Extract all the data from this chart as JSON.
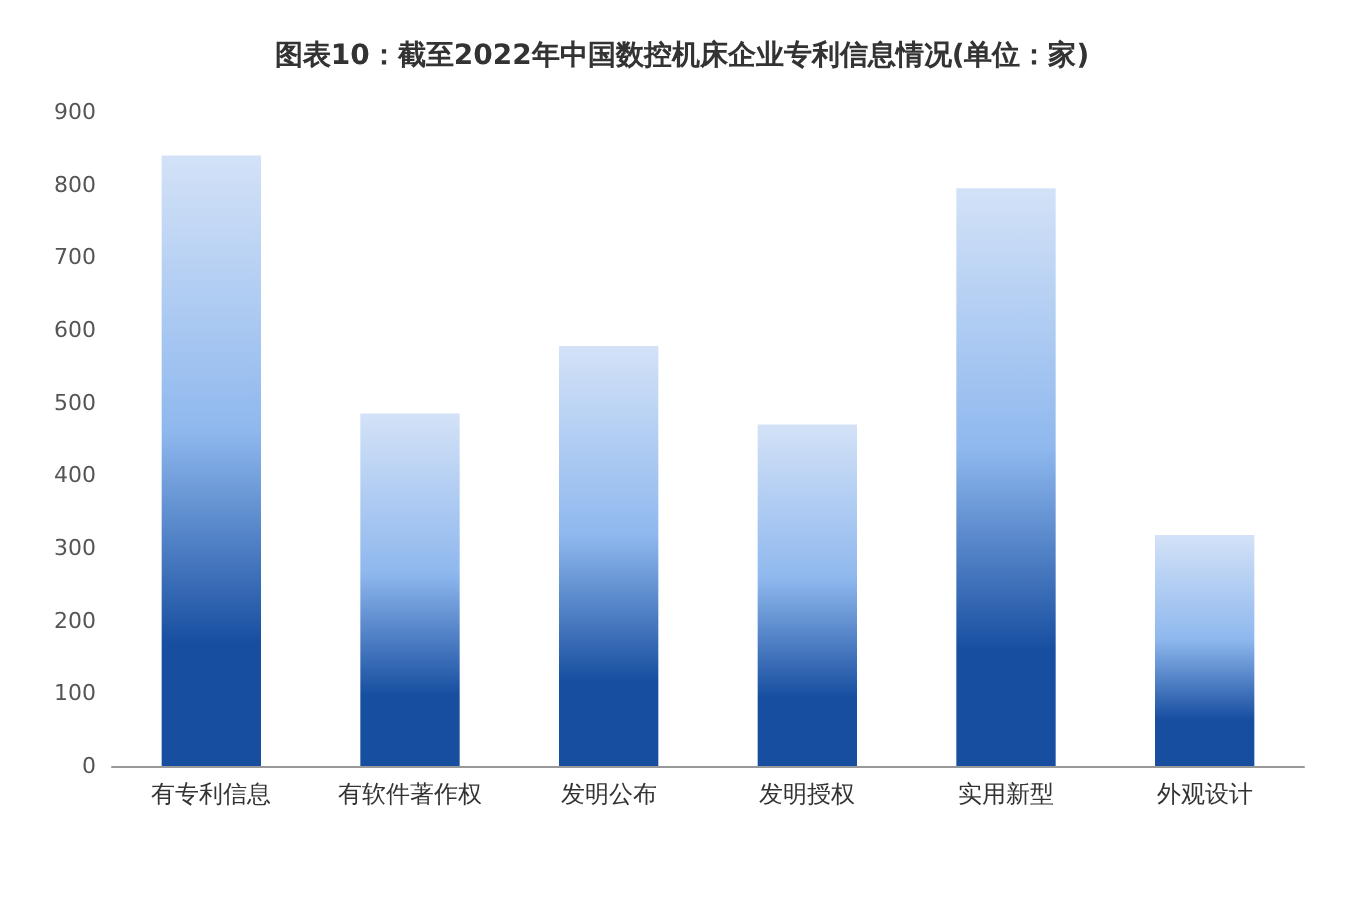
{
  "chart_data": {
    "type": "bar",
    "title": "图表10：截至2022年中国数控机床企业专利信息情况(单位：家)",
    "categories": [
      "有专利信息",
      "有软件著作权",
      "发明公布",
      "发明授权",
      "实用新型",
      "外观设计"
    ],
    "values": [
      840,
      485,
      578,
      470,
      795,
      318
    ],
    "color": "#174ea0",
    "ylim": [
      0,
      900
    ],
    "yticks": [
      0,
      100,
      200,
      300,
      400,
      500,
      600,
      700,
      800,
      900
    ]
  }
}
